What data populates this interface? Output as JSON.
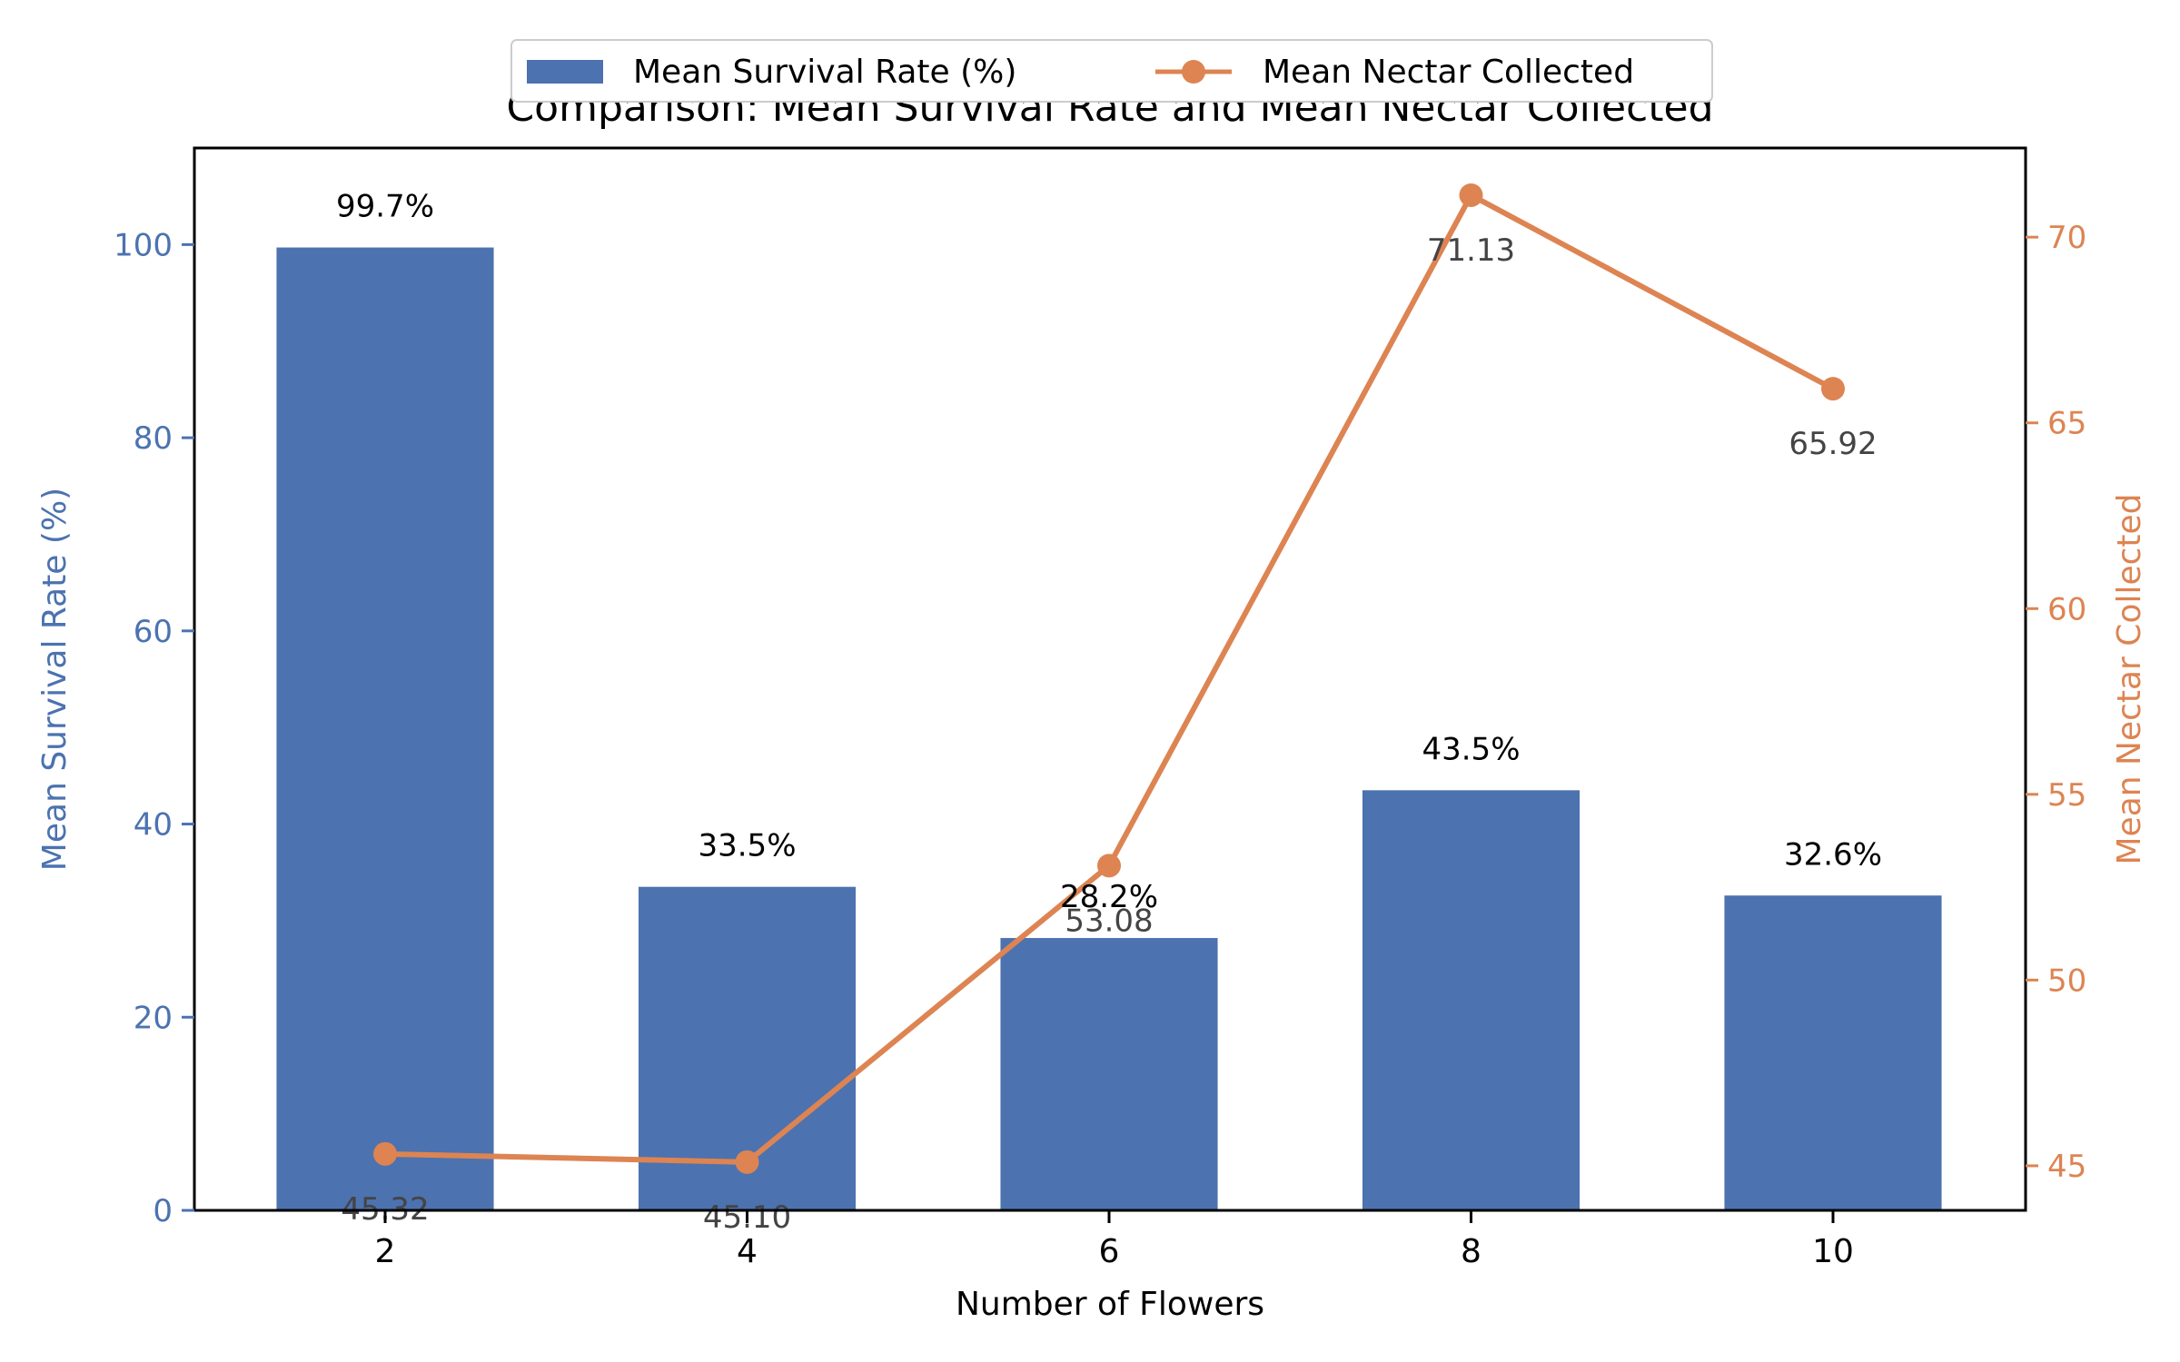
{
  "chart_data": {
    "type": "bar",
    "title": "Comparison: Mean Survival Rate and Mean Nectar Collected",
    "xlabel": "Number of Flowers",
    "ylabel": "Mean Survival Rate (%)",
    "y2label": "Mean Nectar Collected",
    "categories": [
      "2",
      "4",
      "6",
      "8",
      "10"
    ],
    "series": [
      {
        "name": "Mean Survival Rate (%)",
        "type": "bar",
        "axis": "left",
        "color": "#4c72b0",
        "values": [
          99.7,
          33.5,
          28.2,
          43.5,
          32.6
        ],
        "labels": [
          "99.7%",
          "33.5%",
          "28.2%",
          "43.5%",
          "32.6%"
        ]
      },
      {
        "name": "Mean Nectar Collected",
        "type": "line",
        "axis": "right",
        "color": "#dd8452",
        "marker": "circle",
        "values": [
          45.32,
          45.1,
          53.08,
          71.13,
          65.92
        ],
        "labels": [
          "45.32",
          "45.10",
          "53.08",
          "71.13",
          "65.92"
        ]
      }
    ],
    "ylim": [
      0,
      110
    ],
    "y2lim": [
      43.8,
      72.4
    ],
    "yticks": [
      "0",
      "20",
      "40",
      "60",
      "80",
      "100"
    ],
    "y2ticks": [
      "45",
      "50",
      "55",
      "60",
      "65",
      "70"
    ],
    "legend": "upper-center",
    "grid": false,
    "colors": {
      "left_axis": "#4c72b0",
      "right_axis": "#dd8452",
      "frame": "#000000",
      "value_text": "#444444"
    }
  }
}
